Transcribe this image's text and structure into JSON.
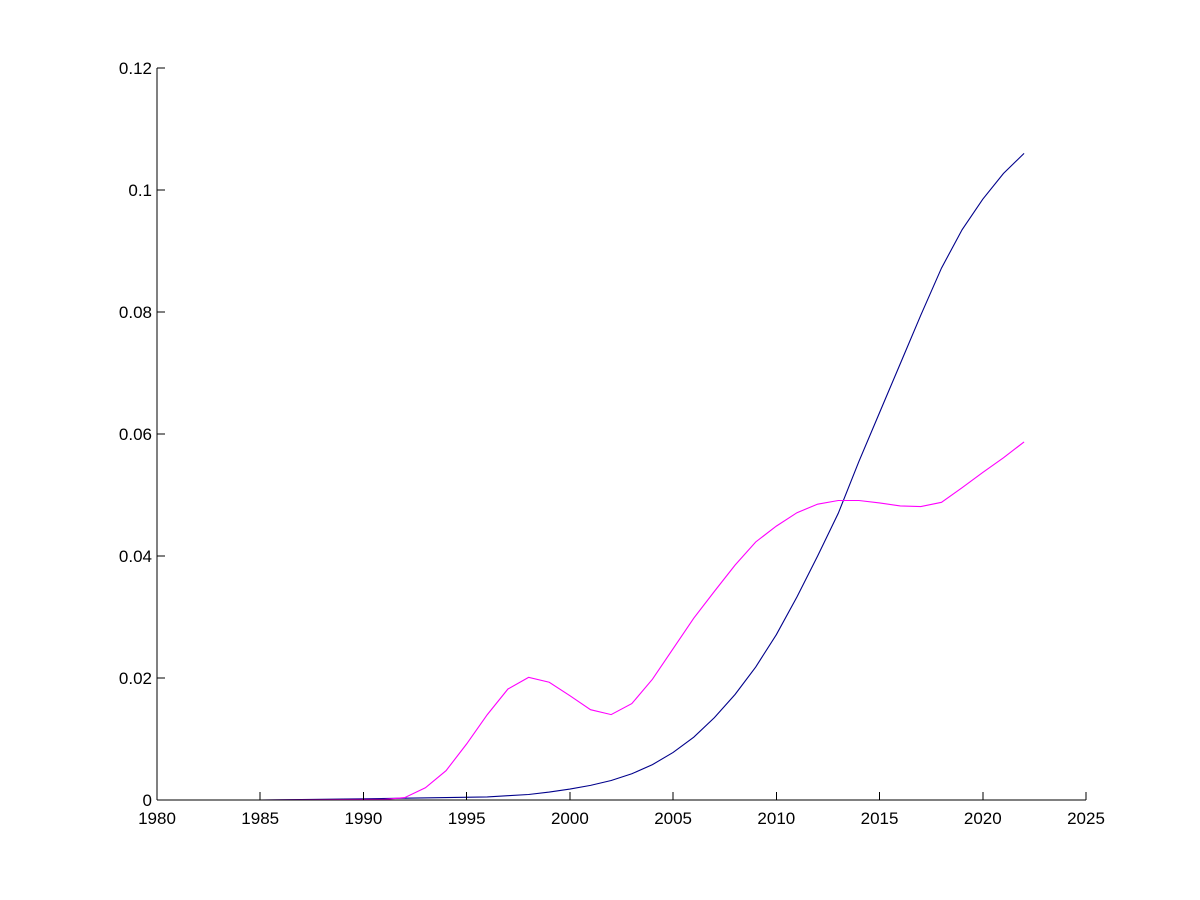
{
  "chart_data": {
    "type": "line",
    "title": "",
    "xlabel": "",
    "ylabel": "",
    "xlim": [
      1980,
      2025
    ],
    "ylim": [
      0,
      0.12
    ],
    "xticks": [
      1980,
      1985,
      1990,
      1995,
      2000,
      2005,
      2010,
      2015,
      2020,
      2025
    ],
    "yticks": [
      0,
      0.02,
      0.04,
      0.06,
      0.08,
      0.1,
      0.12
    ],
    "xtick_labels": [
      "1980",
      "1985",
      "1990",
      "1995",
      "2000",
      "2005",
      "2010",
      "2015",
      "2020",
      "2025"
    ],
    "ytick_labels": [
      "0",
      "0.02",
      "0.04",
      "0.06",
      "0.08",
      "0.1",
      "0.12"
    ],
    "grid": false,
    "legend": "none",
    "series": [
      {
        "color": "#00008b",
        "x": [
          1980,
          1985,
          1990,
          1992,
          1994,
          1996,
          1997,
          1998,
          1999,
          2000,
          2001,
          2002,
          2003,
          2004,
          2005,
          2006,
          2007,
          2008,
          2009,
          2010,
          2011,
          2012,
          2013,
          2014,
          2015,
          2016,
          2017,
          2018,
          2019,
          2020,
          2021,
          2022
        ],
        "values": [
          0,
          0,
          0.0002,
          0.0003,
          0.0004,
          0.0005,
          0.0007,
          0.0009,
          0.0013,
          0.0018,
          0.0024,
          0.0032,
          0.0043,
          0.0058,
          0.0078,
          0.0103,
          0.0135,
          0.0173,
          0.0218,
          0.0271,
          0.0333,
          0.04,
          0.047,
          0.0555,
          0.0635,
          0.0715,
          0.0795,
          0.0872,
          0.0935,
          0.0985,
          0.1027,
          0.106
        ]
      },
      {
        "color": "#ff00ff",
        "x": [
          1980,
          1985,
          1990,
          1991,
          1992,
          1993,
          1994,
          1995,
          1996,
          1997,
          1998,
          1999,
          2000,
          2001,
          2002,
          2003,
          2004,
          2005,
          2006,
          2007,
          2008,
          2009,
          2010,
          2011,
          2012,
          2013,
          2014,
          2015,
          2016,
          2017,
          2018,
          2019,
          2020,
          2021,
          2022
        ],
        "values": [
          0,
          0,
          0.0001,
          0.0001,
          0.0004,
          0.002,
          0.0048,
          0.0092,
          0.014,
          0.0182,
          0.0201,
          0.0193,
          0.0171,
          0.0148,
          0.014,
          0.0158,
          0.0198,
          0.0248,
          0.0298,
          0.0342,
          0.0385,
          0.0423,
          0.0449,
          0.0471,
          0.0485,
          0.0491,
          0.0491,
          0.0487,
          0.0482,
          0.0481,
          0.0488,
          0.0512,
          0.0537,
          0.0561,
          0.0587
        ]
      }
    ]
  }
}
